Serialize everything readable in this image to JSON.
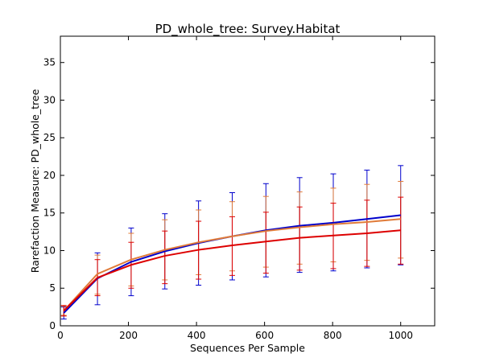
{
  "chart_data": {
    "type": "line",
    "title": "PD_whole_tree: Survey.Habitat",
    "xlabel": "Sequences Per Sample",
    "ylabel": "Rarefaction Measure: PD_whole_tree",
    "xlim": [
      0,
      1100
    ],
    "ylim": [
      0,
      38.5
    ],
    "xticks": [
      0,
      200,
      400,
      600,
      800,
      1000
    ],
    "yticks": [
      0,
      5,
      10,
      15,
      20,
      25,
      30,
      35
    ],
    "grid": false,
    "x": [
      10,
      109,
      208,
      307,
      406,
      505,
      604,
      703,
      802,
      901,
      1000
    ],
    "series": [
      {
        "color": "#0000cc",
        "values": [
          1.7,
          6.3,
          8.5,
          9.9,
          11.0,
          11.9,
          12.7,
          13.3,
          13.7,
          14.2,
          14.7
        ],
        "err_low": [
          0.9,
          2.8,
          4.0,
          4.9,
          5.4,
          6.1,
          6.5,
          7.1,
          7.3,
          7.7,
          8.1
        ],
        "err_high": [
          2.5,
          9.7,
          13.0,
          14.9,
          16.6,
          17.7,
          18.9,
          19.7,
          20.2,
          20.7,
          21.3
        ]
      },
      {
        "color": "#e07b39",
        "values": [
          2.0,
          6.9,
          8.8,
          10.1,
          11.1,
          11.9,
          12.6,
          13.1,
          13.5,
          13.8,
          14.2
        ],
        "err_low": [
          1.4,
          4.2,
          5.3,
          6.1,
          6.8,
          7.3,
          7.8,
          8.2,
          8.5,
          8.7,
          9.0
        ],
        "err_high": [
          2.6,
          9.4,
          12.3,
          14.1,
          15.4,
          16.5,
          17.2,
          17.8,
          18.3,
          18.8,
          19.2
        ]
      },
      {
        "color": "#dd0000",
        "values": [
          2.0,
          6.4,
          8.1,
          9.3,
          10.1,
          10.7,
          11.2,
          11.7,
          12.0,
          12.3,
          12.7
        ],
        "err_low": [
          1.3,
          4.0,
          5.0,
          5.6,
          6.2,
          6.7,
          7.0,
          7.4,
          7.6,
          7.9,
          8.2
        ],
        "err_high": [
          2.7,
          8.8,
          11.1,
          12.6,
          13.9,
          14.5,
          15.1,
          15.8,
          16.3,
          16.7,
          17.1
        ]
      }
    ]
  }
}
